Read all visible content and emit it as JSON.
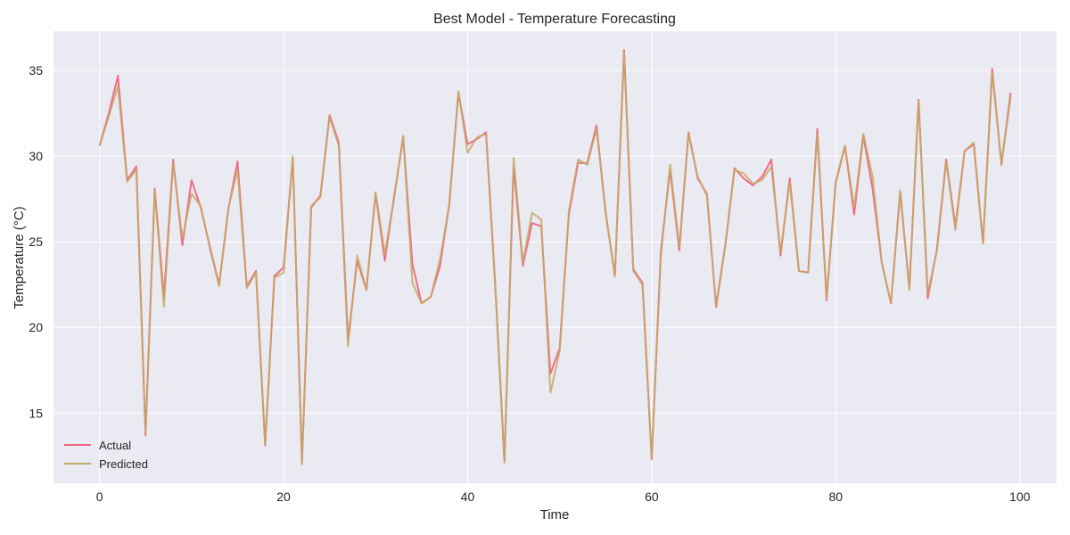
{
  "chart_data": {
    "type": "line",
    "title": "Best Model - Temperature Forecasting",
    "xlabel": "Time",
    "ylabel": "Temperature (°C)",
    "xlim": [
      -5,
      104
    ],
    "ylim": [
      10.9,
      37.3
    ],
    "xticks": [
      0,
      20,
      40,
      60,
      80,
      100
    ],
    "yticks": [
      15,
      20,
      25,
      30,
      35
    ],
    "grid": true,
    "legend_position": "lower-left",
    "background_color": "#eaeaf2",
    "grid_color": "#ffffff",
    "x": [
      0,
      1,
      2,
      3,
      4,
      5,
      6,
      7,
      8,
      9,
      10,
      11,
      12,
      13,
      14,
      15,
      16,
      17,
      18,
      19,
      20,
      21,
      22,
      23,
      24,
      25,
      26,
      27,
      28,
      29,
      30,
      31,
      32,
      33,
      34,
      35,
      36,
      37,
      38,
      39,
      40,
      41,
      42,
      43,
      44,
      45,
      46,
      47,
      48,
      49,
      50,
      51,
      52,
      53,
      54,
      55,
      56,
      57,
      58,
      59,
      60,
      61,
      62,
      63,
      64,
      65,
      66,
      67,
      68,
      69,
      70,
      71,
      72,
      73,
      74,
      75,
      76,
      77,
      78,
      79,
      80,
      81,
      82,
      83,
      84,
      85,
      86,
      87,
      88,
      89,
      90,
      91,
      92,
      93,
      94,
      95,
      96,
      97,
      98,
      99
    ],
    "series": [
      {
        "name": "Actual",
        "color": "#f0667f",
        "values": [
          30.6,
          32.5,
          34.7,
          28.6,
          29.4,
          13.7,
          28.1,
          21.8,
          29.8,
          24.8,
          28.6,
          27.0,
          24.7,
          22.5,
          26.9,
          29.7,
          22.4,
          23.3,
          13.1,
          23.0,
          23.5,
          29.9,
          12.1,
          27.0,
          27.7,
          32.4,
          30.8,
          19.3,
          23.9,
          22.2,
          27.8,
          23.9,
          27.6,
          31.1,
          23.7,
          21.4,
          21.8,
          23.6,
          27.2,
          33.7,
          30.7,
          31.0,
          31.4,
          22.5,
          12.2,
          29.4,
          23.6,
          26.1,
          25.9,
          17.3,
          18.8,
          26.6,
          29.6,
          29.6,
          31.8,
          26.7,
          23.0,
          36.2,
          23.4,
          22.6,
          12.3,
          24.5,
          29.2,
          24.5,
          31.4,
          28.7,
          27.8,
          21.2,
          24.8,
          29.3,
          28.7,
          28.3,
          28.8,
          29.8,
          24.2,
          28.7,
          23.3,
          23.2,
          31.6,
          21.6,
          28.5,
          30.6,
          26.6,
          31.2,
          28.1,
          23.8,
          21.4,
          27.9,
          22.3,
          33.3,
          21.7,
          24.6,
          29.8,
          25.9,
          30.3,
          30.7,
          24.9,
          35.1,
          29.5,
          33.7
        ]
      },
      {
        "name": "Predicted",
        "color": "#c3a866",
        "values": [
          30.6,
          32.3,
          34.1,
          28.5,
          29.2,
          13.8,
          28.0,
          21.2,
          29.6,
          25.2,
          27.8,
          27.1,
          24.6,
          22.4,
          27.0,
          29.2,
          22.3,
          23.2,
          13.2,
          22.9,
          23.2,
          30.0,
          12.0,
          27.1,
          27.6,
          32.3,
          30.6,
          18.9,
          24.2,
          22.2,
          27.9,
          24.3,
          27.5,
          31.2,
          22.6,
          21.4,
          21.8,
          24.0,
          27.1,
          33.8,
          30.2,
          31.1,
          31.3,
          22.4,
          12.1,
          29.9,
          23.8,
          26.7,
          26.3,
          16.2,
          18.6,
          26.8,
          29.8,
          29.5,
          31.6,
          26.7,
          23.0,
          36.1,
          23.3,
          22.5,
          12.4,
          24.2,
          29.5,
          24.7,
          31.3,
          28.8,
          27.7,
          21.3,
          24.8,
          29.2,
          29.0,
          28.4,
          28.6,
          29.4,
          24.4,
          28.5,
          23.3,
          23.2,
          31.3,
          21.7,
          28.4,
          30.6,
          27.0,
          31.3,
          28.8,
          23.8,
          21.4,
          28.0,
          22.2,
          33.2,
          22.0,
          24.5,
          29.7,
          25.7,
          30.3,
          30.8,
          24.9,
          34.9,
          29.6,
          33.4
        ]
      }
    ]
  }
}
